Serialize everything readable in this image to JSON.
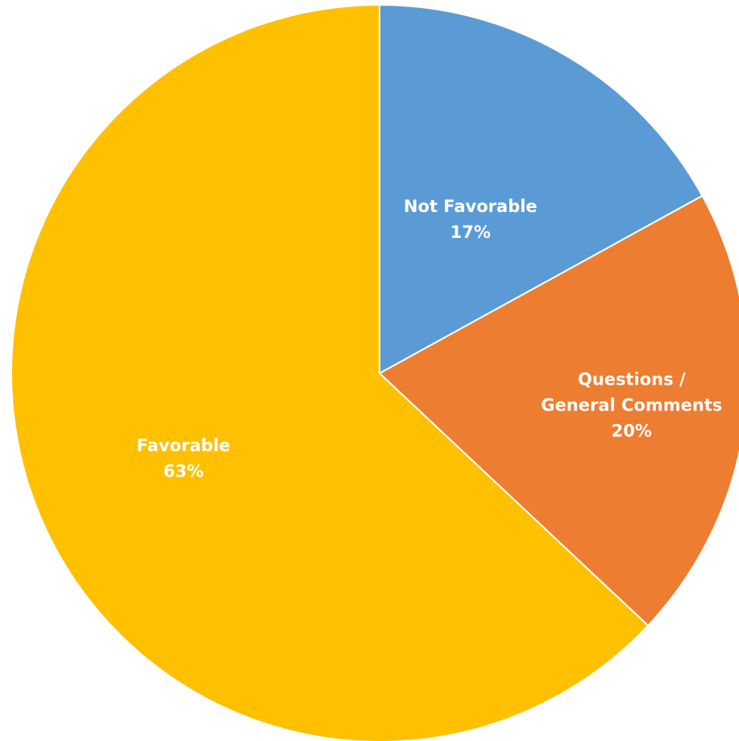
{
  "chart_data": {
    "type": "pie",
    "title": "",
    "legend": "none",
    "start_angle_deg": 0,
    "direction": "clockwise",
    "slices": [
      {
        "label": "Not Favorable",
        "label_lines": [
          "Not Favorable"
        ],
        "value": 17,
        "display": "17%",
        "color": "#5B9BD5"
      },
      {
        "label": "Questions / General Comments",
        "label_lines": [
          "Questions /",
          "General Comments"
        ],
        "value": 20,
        "display": "20%",
        "color": "#ED7D31"
      },
      {
        "label": "Favorable",
        "label_lines": [
          "Favorable"
        ],
        "value": 63,
        "display": "63%",
        "color": "#FFC000"
      }
    ]
  }
}
